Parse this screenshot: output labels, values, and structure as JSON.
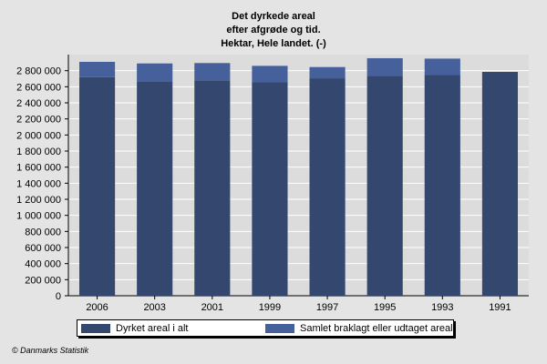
{
  "title_lines": [
    "Det dyrkede areal",
    "efter afgrøde og tid.",
    "Hektar, Hele landet. (-)"
  ],
  "footer": "© Danmarks Statistik",
  "colors": {
    "background": "#e4e4e4",
    "plot_background": "#dcdcdc",
    "gridline": "#ffffff",
    "series_1": "#33476f",
    "series_2": "#45609a"
  },
  "chart_data": {
    "type": "bar",
    "stacked": true,
    "categories": [
      "2006",
      "2003",
      "2001",
      "1999",
      "1997",
      "1995",
      "1993",
      "1991"
    ],
    "series": [
      {
        "name": "Dyrket areal i alt",
        "values": [
          2720000,
          2665000,
          2680000,
          2655000,
          2705000,
          2735000,
          2745000,
          2785000
        ]
      },
      {
        "name": "Samlet braklagt eller udtaget areal",
        "values": [
          190000,
          225000,
          215000,
          205000,
          140000,
          220000,
          205000,
          0
        ]
      }
    ],
    "ylim": [
      0,
      3000000
    ],
    "yticks": [
      0,
      200000,
      400000,
      600000,
      800000,
      1000000,
      1200000,
      1400000,
      1600000,
      1800000,
      2000000,
      2200000,
      2400000,
      2600000,
      2800000
    ],
    "ytick_labels": [
      "0",
      "200 000",
      "400 000",
      "600 000",
      "800 000",
      "1 000 000",
      "1 200 000",
      "1 400 000",
      "1 600 000",
      "1 800 000",
      "2 000 000",
      "2 200 000",
      "2 400 000",
      "2 600 000",
      "2 800 000"
    ],
    "grid": true,
    "legend_position": "bottom",
    "xlabel": "",
    "ylabel": ""
  }
}
